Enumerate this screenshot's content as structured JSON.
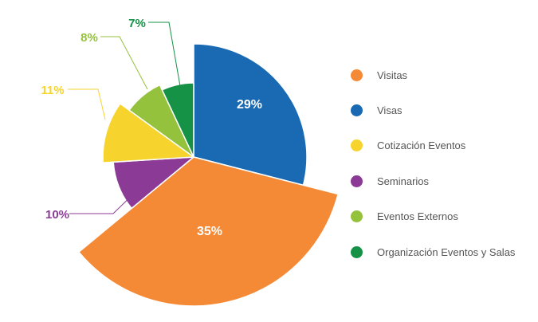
{
  "chart_data": {
    "type": "pie",
    "title": "",
    "start_angle_deg": 0,
    "direction": "clockwise",
    "slices": [
      {
        "label": "Visas",
        "value": 29,
        "display": "29%",
        "color": "#1a6ab3",
        "label_position": "inside"
      },
      {
        "label": "Visitas",
        "value": 35,
        "display": "35%",
        "color": "#f58a36",
        "label_position": "inside"
      },
      {
        "label": "Seminarios",
        "value": 10,
        "display": "10%",
        "color": "#8b3a96",
        "label_position": "outside"
      },
      {
        "label": "Cotización Eventos",
        "value": 11,
        "display": "11%",
        "color": "#f6d42d",
        "label_position": "outside"
      },
      {
        "label": "Eventos Externos",
        "value": 8,
        "display": "8%",
        "color": "#95c23d",
        "label_position": "outside"
      },
      {
        "label": "Organización Eventos y Salas",
        "value": 7,
        "display": "7%",
        "color": "#169247",
        "label_position": "outside"
      }
    ],
    "legend": {
      "placement": "right",
      "entries": [
        {
          "label": "Visitas",
          "color": "#f58a36"
        },
        {
          "label": "Visas",
          "color": "#1a6ab3"
        },
        {
          "label": "Cotización Eventos",
          "color": "#f6d42d"
        },
        {
          "label": "Seminarios",
          "color": "#8b3a96"
        },
        {
          "label": "Eventos Externos",
          "color": "#95c23d"
        },
        {
          "label": "Organización Eventos y Salas",
          "color": "#169247"
        }
      ]
    }
  }
}
